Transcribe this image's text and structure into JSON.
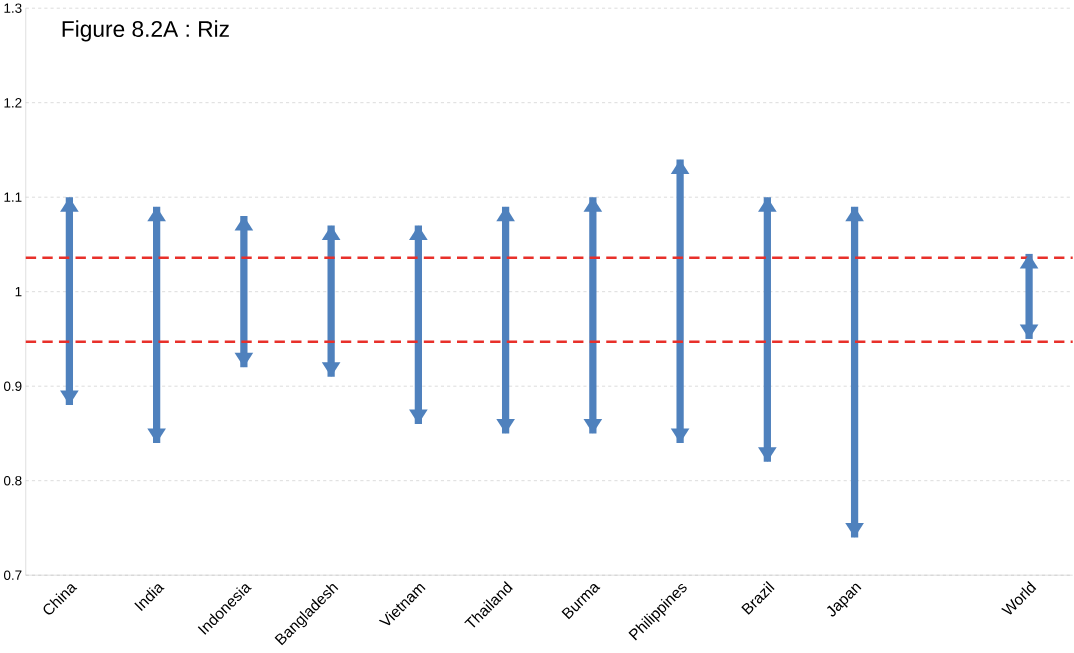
{
  "chart_data": {
    "type": "bar",
    "title": "Figure 8.2A : Riz",
    "categories": [
      "China",
      "India",
      "Indonesia",
      "Bangladesh",
      "Vietnam",
      "Thailand",
      "Burma",
      "Philippines",
      "Brazil",
      "Japan",
      null,
      "World"
    ],
    "base": [
      0.88,
      0.84,
      0.92,
      0.91,
      0.86,
      0.85,
      0.85,
      0.84,
      0.82,
      0.74,
      null,
      0.95
    ],
    "values": [
      0.22,
      0.25,
      0.16,
      0.16,
      0.21,
      0.24,
      0.25,
      0.3,
      0.28,
      0.35,
      null,
      0.09
    ],
    "color": "#4f81bd",
    "ylim": [
      0.7,
      1.3
    ],
    "yticks": [
      0.7,
      0.8,
      0.9,
      1,
      1.1,
      1.2,
      1.3
    ],
    "grid": "y",
    "ref_lines": [
      {
        "axis": "y",
        "value": 1.036,
        "color": "#e8302a",
        "line_style": "dashed"
      },
      {
        "axis": "y",
        "value": 0.947,
        "color": "#e8302a",
        "line_style": "dashed"
      }
    ]
  }
}
